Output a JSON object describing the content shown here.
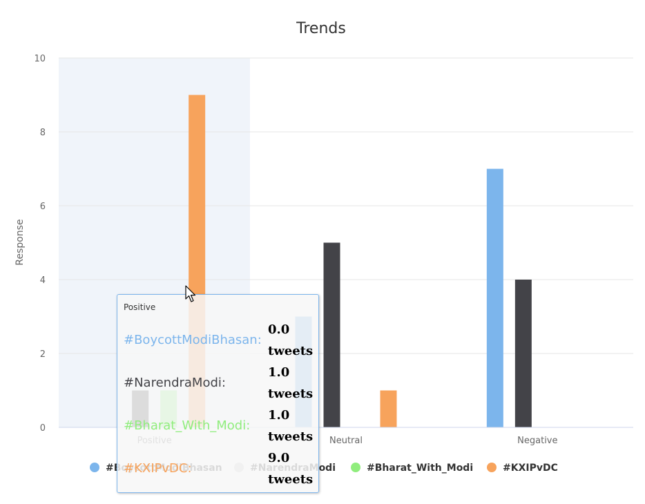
{
  "chart_data": {
    "type": "bar",
    "title": "Trends",
    "ylabel": "Response",
    "xlabel": "",
    "ylim": [
      0,
      10
    ],
    "yticks": [
      0,
      2,
      4,
      6,
      8,
      10
    ],
    "grid": true,
    "legend": "bottom-center",
    "categories": [
      "Positive",
      "Neutral",
      "Negative"
    ],
    "highlighted_category": "Positive",
    "series": [
      {
        "name": "#BoycottModiBhasan",
        "color": "#7cb5ec",
        "values": [
          0,
          3,
          7
        ]
      },
      {
        "name": "#NarendraModi",
        "color": "#434348",
        "values": [
          1,
          5,
          4
        ]
      },
      {
        "name": "#Bharat_With_Modi",
        "color": "#90ed7d",
        "values": [
          1,
          0,
          0
        ]
      },
      {
        "name": "#KXIPvDC",
        "color": "#f7a35c",
        "values": [
          9,
          1,
          0
        ]
      }
    ],
    "legend_swatch_colors": [
      "#7cb5ec",
      "#cccccc",
      "#90ed7d",
      "#f7a35c"
    ]
  },
  "tooltip": {
    "header": "Positive",
    "rows": [
      {
        "name": "#BoycottModiBhasan:",
        "color": "#7cb5ec",
        "value": "0.0",
        "unit": "tweets"
      },
      {
        "name": "#NarendraModi:",
        "color": "#434348",
        "value": "1.0",
        "unit": "tweets"
      },
      {
        "name": "#Bharat_With_Modi:",
        "color": "#90ed7d",
        "value": "1.0",
        "unit": "tweets"
      },
      {
        "name": "#KXIPvDC:",
        "color": "#f7a35c",
        "value": "9.0",
        "unit": "tweets"
      }
    ]
  }
}
